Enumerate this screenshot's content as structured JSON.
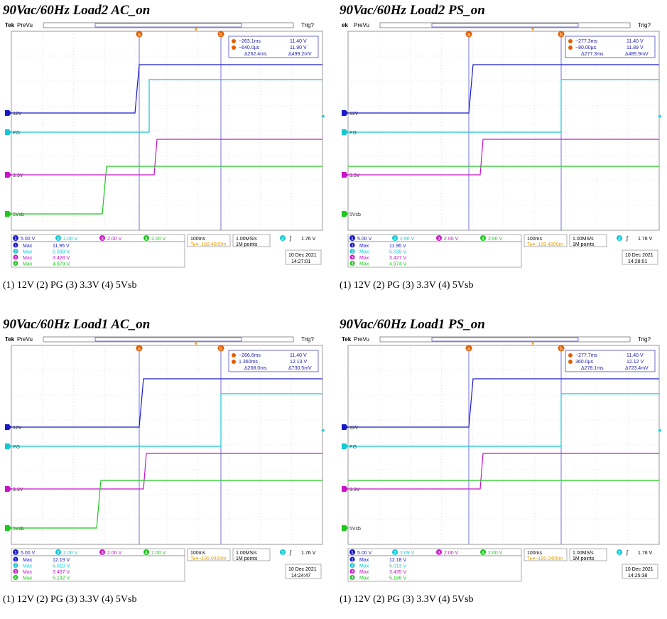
{
  "colors": {
    "ch1": "#1a1ac8",
    "ch2": "#14c8d2",
    "ch3": "#c814c8",
    "ch4": "#1ec81e",
    "cursor": "#7070e0",
    "orange": "#e06000",
    "trigger": "#f0a000"
  },
  "panels": [
    {
      "title": "90Vac/60Hz Load2 AC_on",
      "caption": "(1) 12V (2) PG (3) 3.3V (4) 5Vsb",
      "brand": "Tek",
      "mode": "PreVu",
      "trig": "Trig?",
      "cursor_a_label": "a",
      "cursor_b_label": "b",
      "readout": {
        "a_time": "−263.1ms",
        "a_volt": "11.40 V",
        "b_time": "−640.0µs",
        "b_volt": "11.90 V",
        "d_time": "Δ262.4ms",
        "d_volt": "Δ499.2mV"
      },
      "channel_labels": {
        "ch1": "12V",
        "ch2": "PG",
        "ch3": "3.3V",
        "ch4": "5Vsb"
      },
      "scales": {
        "ch1": "5.00 V",
        "ch2": "2.00 V",
        "ch3": "2.00 V",
        "ch4": "2.00 V"
      },
      "timebase": "100ms",
      "trigger_pos": "T▸▾−189.4800m",
      "sample_rate": "1.00MS/s",
      "record": "1M points",
      "trigger_ch": "2",
      "trigger_slope": "ʃ",
      "trigger_level": "1.76 V",
      "measurements": [
        {
          "ch": "1",
          "label": "Max",
          "value": "11.95 V"
        },
        {
          "ch": "2",
          "label": "Max",
          "value": "5.033 V"
        },
        {
          "ch": "3",
          "label": "Max",
          "value": "3.428 V"
        },
        {
          "ch": "4",
          "label": "Max",
          "value": "4.979 V"
        }
      ],
      "date": "10 Dec  2021",
      "time": "14:27:01",
      "wave": {
        "c1": 184,
        "c2": 204,
        "c3": 211,
        "c4": 138,
        "ca": 190,
        "cb": 305,
        "ch2_jump": true,
        "ch4_jump": true
      }
    },
    {
      "title": "90Vac/60Hz Load2 PS_on",
      "caption": "(1) 12V (2) PG (3) 3.3V (4) 5Vsb",
      "brand": "ek",
      "mode": "PreVu",
      "trig": "Trig?",
      "cursor_a_label": "a",
      "cursor_b_label": "b",
      "readout": {
        "a_time": "−277.3ms",
        "a_volt": "11.40 V",
        "b_time": "−80.00µs",
        "b_volt": "11.89 V",
        "d_time": "Δ277.3ms",
        "d_volt": "Δ485.9mV"
      },
      "channel_labels": {
        "ch1": "12V",
        "ch2": "PG",
        "ch3": "3.3V",
        "ch4": "5Vsb"
      },
      "scales": {
        "ch1": "5.00 V",
        "ch2": "2.00 V",
        "ch3": "2.00 V",
        "ch4": "2.00 V"
      },
      "timebase": "100ms",
      "trigger_pos": "T▸▾−189.4800m",
      "sample_rate": "1.00MS/s",
      "record": "1M points",
      "trigger_ch": "2",
      "trigger_slope": "ʃ",
      "trigger_level": "1.76 V",
      "measurements": [
        {
          "ch": "1",
          "label": "Max",
          "value": "11.96 V"
        },
        {
          "ch": "2",
          "label": "Max",
          "value": "5.035 V"
        },
        {
          "ch": "3",
          "label": "Max",
          "value": "3.427 V"
        },
        {
          "ch": "4",
          "label": "Max",
          "value": "4.974 V"
        }
      ],
      "date": "10 Dec  2021",
      "time": "14:28:01",
      "wave": {
        "c1": 180,
        "c2": 310,
        "c3": 196,
        "c4": 196,
        "ca": 180,
        "cb": 310,
        "ch2_jump": true,
        "ch4_jump": false
      }
    },
    {
      "title": "90Vac/60Hz Load1 AC_on",
      "caption": "(1) 12V (2) PG (3) 3.3V (4) 5Vsb",
      "brand": "Tek",
      "mode": "PreVu",
      "trig": "Trig?",
      "cursor_a_label": "a",
      "cursor_b_label": "b",
      "readout": {
        "a_time": "−266.6ms",
        "a_volt": "11.40 V",
        "b_time": "1.360ms",
        "b_volt": "12.13 V",
        "d_time": "Δ268.0ms",
        "d_volt": "Δ730.5mV"
      },
      "channel_labels": {
        "ch1": "12V",
        "ch2": "PG",
        "ch3": "3.3V",
        "ch4": "5Vsb"
      },
      "scales": {
        "ch1": "5.00 V",
        "ch2": "2.00 V",
        "ch3": "2.00 V",
        "ch4": "2.00 V"
      },
      "timebase": "100ms",
      "trigger_pos": "T▸▾−195.0400m",
      "sample_rate": "1.00MS/s",
      "record": "1M points",
      "trigger_ch": "2",
      "trigger_slope": "ʃ",
      "trigger_level": "1.76 V",
      "measurements": [
        {
          "ch": "1",
          "label": "Max",
          "value": "12.19 V"
        },
        {
          "ch": "2",
          "label": "Max",
          "value": "5.010 V"
        },
        {
          "ch": "3",
          "label": "Max",
          "value": "3.437 V"
        },
        {
          "ch": "4",
          "label": "Max",
          "value": "5.192 V"
        }
      ],
      "date": "10 Dec  2021",
      "time": "14:24:47",
      "wave": {
        "c1": 190,
        "c2": 305,
        "c3": 196,
        "c4": 130,
        "ca": 190,
        "cb": 305,
        "ch2_jump": true,
        "ch4_jump": true
      }
    },
    {
      "title": "90Vac/60Hz Load1 PS_on",
      "caption": "(1) 12V (2) PG (3) 3.3V (4) 5Vsb",
      "brand": "Tek",
      "mode": "PreVu",
      "trig": "Trig?",
      "cursor_a_label": "a",
      "cursor_b_label": "b",
      "readout": {
        "a_time": "−277.7ms",
        "a_volt": "11.40 V",
        "b_time": "360.0µs",
        "b_volt": "12.12 V",
        "d_time": "Δ278.1ms",
        "d_volt": "Δ723.4mV"
      },
      "channel_labels": {
        "ch1": "12V",
        "ch2": "PG",
        "ch3": "3.3V",
        "ch4": "5Vsb"
      },
      "scales": {
        "ch1": "5.00 V",
        "ch2": "2.09 V",
        "ch3": "2.00 V",
        "ch4": "2.00 V"
      },
      "timebase": "100ms",
      "trigger_pos": "T▸▾−195.0400m",
      "sample_rate": "1.00MS/s",
      "record": "1M points",
      "trigger_ch": "2",
      "trigger_slope": "ʃ",
      "trigger_level": "1.76 V",
      "measurements": [
        {
          "ch": "1",
          "label": "Max",
          "value": "12.18 V"
        },
        {
          "ch": "2",
          "label": "Max",
          "value": "5.013 V"
        },
        {
          "ch": "3",
          "label": "Max",
          "value": "3.435 V"
        },
        {
          "ch": "4",
          "label": "Max",
          "value": "5.186 V"
        }
      ],
      "date": "10 Dec  2021",
      "time": "14:25:38",
      "wave": {
        "c1": 180,
        "c2": 310,
        "c3": 196,
        "c4": 196,
        "ca": 180,
        "cb": 310,
        "ch2_jump": true,
        "ch4_jump": false
      }
    }
  ]
}
